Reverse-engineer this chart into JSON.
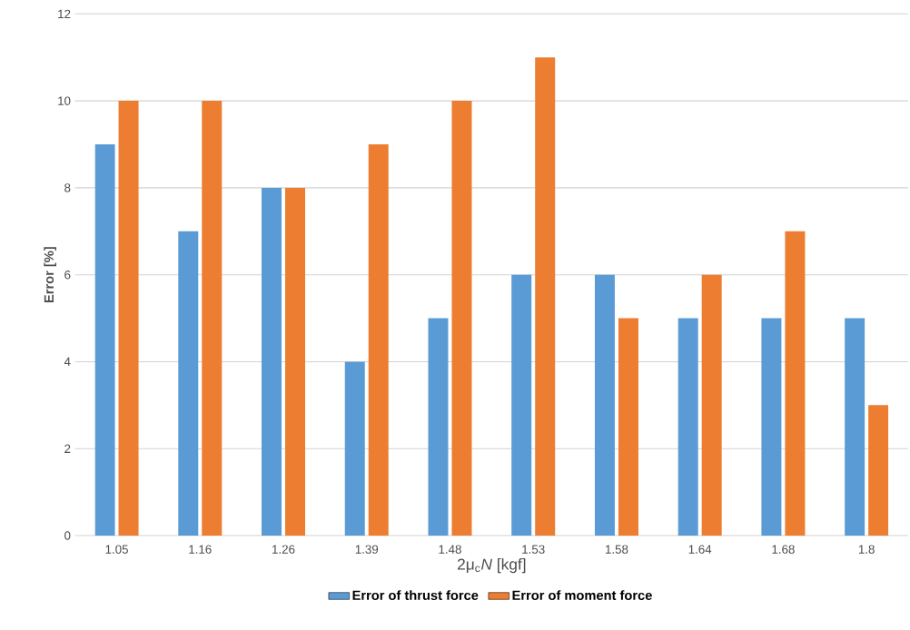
{
  "chart_data": {
    "type": "bar",
    "xlabel": "2μ$_{c}$*N* [kgf]",
    "ylabel": "Error [%]",
    "categories": [
      "1.05",
      "1.16",
      "1.26",
      "1.39",
      "1.48",
      "1.53",
      "1.58",
      "1.64",
      "1.68",
      "1.8"
    ],
    "series": [
      {
        "name": "Error of thrust force",
        "color": "#5b9bd5",
        "values": [
          9,
          7,
          8,
          4,
          5,
          6,
          6,
          5,
          5,
          5
        ]
      },
      {
        "name": "Error of moment force",
        "color": "#ed7d31",
        "values": [
          10,
          10,
          8,
          9,
          10,
          11,
          5,
          6,
          7,
          3
        ]
      }
    ],
    "ylim": [
      0,
      12
    ],
    "yticks": [
      0,
      2,
      4,
      6,
      8,
      10,
      12
    ],
    "grid": "y",
    "legend": "bottom"
  }
}
